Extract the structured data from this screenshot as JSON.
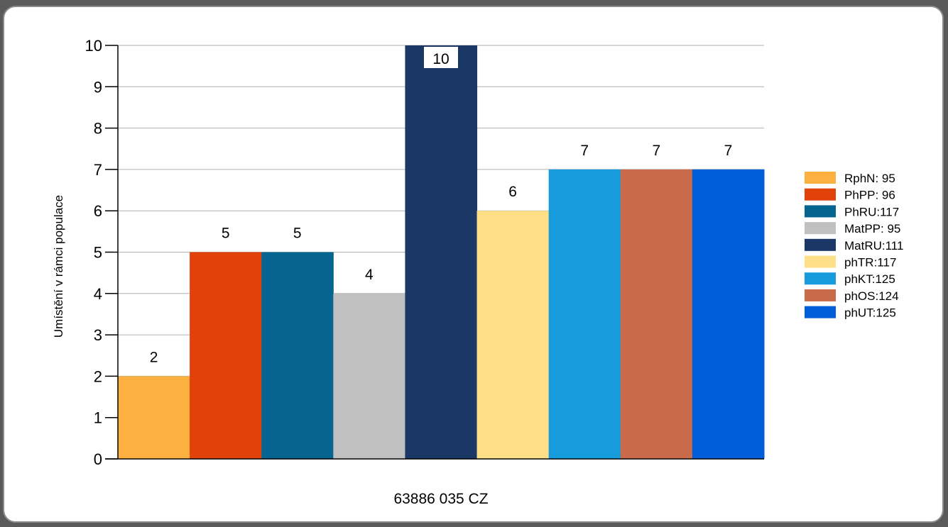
{
  "chart_data": {
    "type": "bar",
    "xlabel": "63886 035 CZ",
    "ylabel": "Umístění v rámci populace",
    "ylim": [
      0,
      10
    ],
    "yticks": [
      0,
      1,
      2,
      3,
      4,
      5,
      6,
      7,
      8,
      9,
      10
    ],
    "grid": true,
    "legend_position": "right",
    "series": [
      {
        "name": "RphN: 95",
        "value": 2,
        "color": "#FBB040"
      },
      {
        "name": "PhPP: 96",
        "value": 5,
        "color": "#E0420A"
      },
      {
        "name": "PhRU:117",
        "value": 5,
        "color": "#066590"
      },
      {
        "name": "MatPP: 95",
        "value": 4,
        "color": "#C0C0C0"
      },
      {
        "name": "MatRU:111",
        "value": 10,
        "color": "#1B3766"
      },
      {
        "name": "phTR:117",
        "value": 6,
        "color": "#FDDF88"
      },
      {
        "name": "phKT:125",
        "value": 7,
        "color": "#169BDD"
      },
      {
        "name": "phOS:124",
        "value": 7,
        "color": "#C96B4B"
      },
      {
        "name": "phUT:125",
        "value": 7,
        "color": "#005EDB"
      }
    ]
  }
}
